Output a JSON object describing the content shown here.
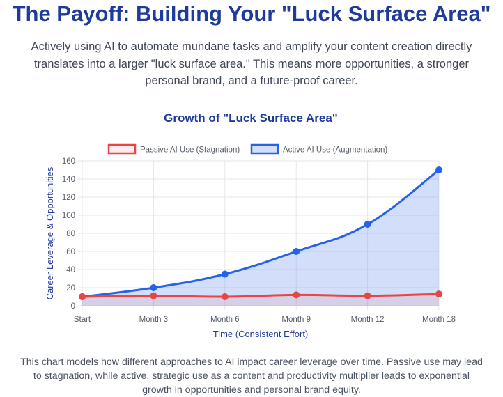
{
  "header": {
    "title": "The Payoff: Building Your \"Luck Surface Area\"",
    "intro_lines": [
      "Actively using AI to automate mundane tasks and amplify your content creation directly",
      "translates into a larger \"luck surface area.\" This means more opportunities, a stronger",
      "personal brand, and a future-proof career."
    ]
  },
  "chart_data": {
    "type": "line",
    "title": "Growth of \"Luck Surface Area\"",
    "xlabel": "Time (Consistent Effort)",
    "ylabel": "Career Leverage & Opportunities",
    "categories": [
      "Start",
      "Month 3",
      "Month 6",
      "Month 9",
      "Month 12",
      "Month 18"
    ],
    "ylim": [
      0,
      160
    ],
    "yticks": [
      0,
      20,
      40,
      60,
      80,
      100,
      120,
      140,
      160
    ],
    "grid": true,
    "legend_position": "top",
    "series": [
      {
        "name": "Passive AI Use (Stagnation)",
        "values": [
          10,
          11,
          10,
          12,
          11,
          13
        ],
        "color": "#e84545",
        "fill": "rgba(232,69,69,0.10)"
      },
      {
        "name": "Active AI Use (Augmentation)",
        "values": [
          10,
          20,
          35,
          60,
          90,
          150
        ],
        "color": "#2563eb",
        "fill": "rgba(96,140,238,0.28)"
      }
    ]
  },
  "footer": {
    "caption_lines": [
      "This chart models how different approaches to AI impact career leverage over time. Passive use may lead",
      "to stagnation, while active, strategic use as a content and productivity multiplier leads to exponential",
      "growth in opportunities and personal brand equity."
    ]
  }
}
